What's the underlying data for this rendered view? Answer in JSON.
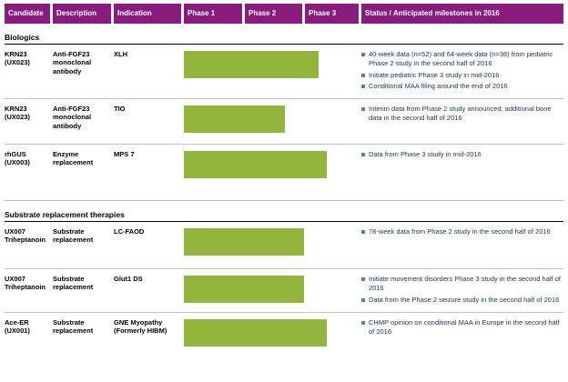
{
  "colors": {
    "header_bg": "#8A1B7E",
    "bar": "#92B53C",
    "bullet": "#4F81BD",
    "bullet_text": "#17365D"
  },
  "header": {
    "candidate": "Candidate",
    "description": "Description",
    "indication": "Indication",
    "phase1": "Phase 1",
    "phase2": "Phase 2",
    "phase3": "Phase 3",
    "status": "Status / Anticipated milestones in 2016"
  },
  "sections": [
    {
      "title": "Biologics",
      "rows": [
        {
          "candidate": "KRN23 (UX023)",
          "description": "Anti-FGF23 monoclonal antibody",
          "indication": "XLH",
          "bar_pct": 77,
          "bullets": [
            "40-week data (n=52) and 64-week data (n=36) from pediatric Phase 2 study in the second half of 2016",
            "Initiate pediatric Phase 3 study in mid-2016",
            "Conditional MAA filing around the end of 2016"
          ]
        },
        {
          "candidate": "KRN23 (UX023)",
          "description": "Anti-FGF23 monoclonal antibody",
          "indication": "TIO",
          "bar_pct": 58,
          "bullets": [
            "Interim data from Phase 2 study announced; additional bone data in the second half of 2016"
          ]
        },
        {
          "candidate": "rhGUS (UX003)",
          "description": "Enzyme replacement",
          "indication": "MPS 7",
          "bar_pct": 82,
          "bullets": [
            "Data from Phase 3 study in mid-2016"
          ]
        }
      ]
    },
    {
      "title": "Substrate replacement therapies",
      "rows": [
        {
          "candidate": "UX007 Triheptanoin",
          "description": "Substrate replacement",
          "indication": "LC-FAOD",
          "bar_pct": 69,
          "bullets": [
            "78-week data from Phase 2 study in the second half of 2016"
          ]
        },
        {
          "candidate": "UX007 Triheptanoin",
          "description": "Substrate replacement",
          "indication": "Glut1 DS",
          "bar_pct": 69,
          "bullets": [
            "Initiate movement disorders Phase 3 study in the second half of 2016",
            "Data from the Phase 2 seizure study in the second half of 2016"
          ]
        },
        {
          "candidate": "Ace-ER (UX001)",
          "description": "Substrate replacement",
          "indication": "GNE Myopathy (Formerly HIBM)",
          "bar_pct": 82,
          "bullets": [
            "CHMP opinion on conditional MAA in Europe in the second half of 2016"
          ]
        }
      ]
    }
  ],
  "chart_data": {
    "type": "table",
    "title": "Clinical pipeline with status and anticipated milestones in 2016",
    "phase_columns": [
      "Phase 1",
      "Phase 2",
      "Phase 3"
    ],
    "rows": [
      {
        "candidate": "KRN23 (UX023)",
        "indication": "XLH",
        "phase_reached": "Phase 3",
        "bar_pct_of_phase_track": 77
      },
      {
        "candidate": "KRN23 (UX023)",
        "indication": "TIO",
        "phase_reached": "Phase 2",
        "bar_pct_of_phase_track": 58
      },
      {
        "candidate": "rhGUS (UX003)",
        "indication": "MPS 7",
        "phase_reached": "Phase 3",
        "bar_pct_of_phase_track": 82
      },
      {
        "candidate": "UX007 Triheptanoin",
        "indication": "LC-FAOD",
        "phase_reached": "Phase 2",
        "bar_pct_of_phase_track": 69
      },
      {
        "candidate": "UX007 Triheptanoin",
        "indication": "Glut1 DS",
        "phase_reached": "Phase 2",
        "bar_pct_of_phase_track": 69
      },
      {
        "candidate": "Ace-ER (UX001)",
        "indication": "GNE Myopathy (Formerly HIBM)",
        "phase_reached": "Phase 3",
        "bar_pct_of_phase_track": 82
      }
    ]
  }
}
